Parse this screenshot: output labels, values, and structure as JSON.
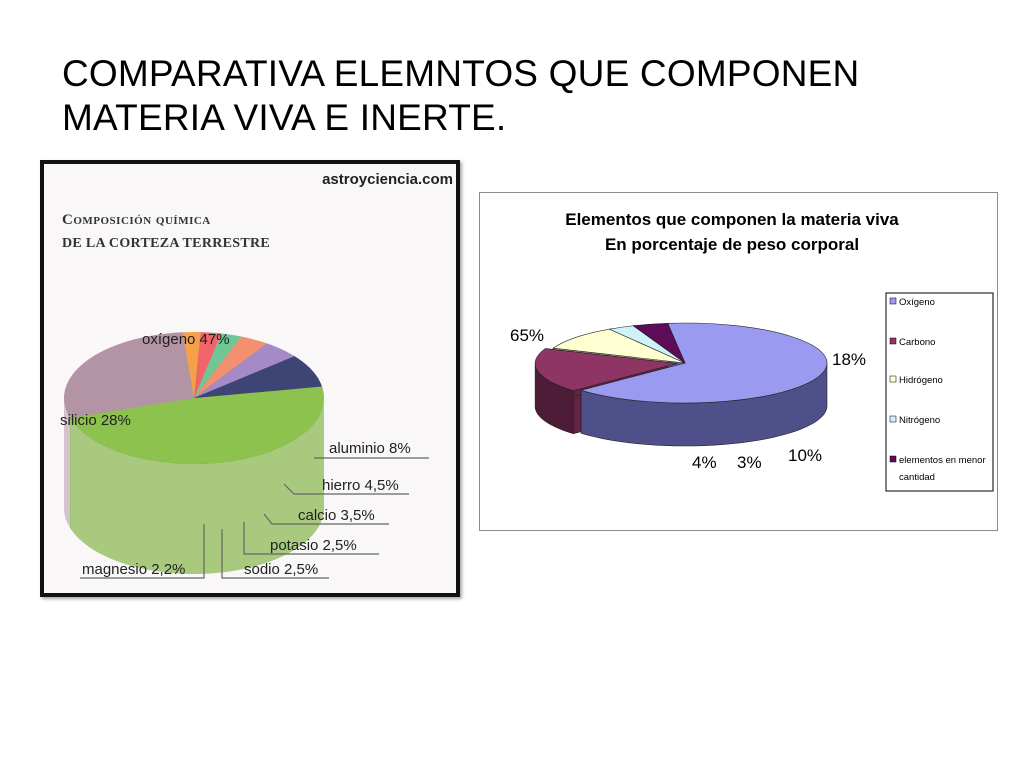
{
  "slide": {
    "title_line1": "COMPARATIVA ELEMNTOS QUE COMPONEN",
    "title_line2": "MATERIA VIVA E INERTE."
  },
  "colors": {
    "left": [
      "#8ec24f",
      "#b394a4",
      "#f5a04a",
      "#f0646a",
      "#6fc795",
      "#f29070",
      "#a48ac6",
      "#3d4574"
    ],
    "right": [
      "#9a9af0",
      "#8e3565",
      "#ffffd2",
      "#cdf3f8",
      "#5e0b58"
    ]
  },
  "chart_data": [
    {
      "type": "pie",
      "watermark": "astroyciencia.com",
      "title_line1": "Composición química",
      "title_line2": "de la corteza terrestre",
      "categories": [
        "oxígeno",
        "silicio",
        "magnesio",
        "sodio",
        "potasio",
        "calcio",
        "hierro",
        "aluminio"
      ],
      "values": [
        47,
        28,
        2.2,
        2.5,
        2.5,
        3.5,
        4.5,
        8
      ],
      "labels": [
        "oxígeno 47%",
        "silicio 28%",
        "magnesio 2,2%",
        "sodio 2,5%",
        "potasio 2,5%",
        "calcio 3,5%",
        "hierro 4,5%",
        "aluminio 8%"
      ]
    },
    {
      "type": "pie",
      "title_line1": "Elementos que componen la materia viva",
      "title_line2": "En porcentaje de peso corporal",
      "categories": [
        "Oxígeno",
        "Carbono",
        "Hidrógeno",
        "Nitrógeno",
        "elementos en menor cantidad"
      ],
      "values": [
        65,
        18,
        10,
        3,
        4
      ],
      "labels": [
        "65%",
        "18%",
        "10%",
        "3%",
        "4%"
      ],
      "legend": {
        "position": "right",
        "items": [
          "Oxígeno",
          "Carbono",
          "Hidrógeno",
          "Nitrógeno",
          "elementos en menor",
          "cantidad"
        ]
      }
    }
  ]
}
